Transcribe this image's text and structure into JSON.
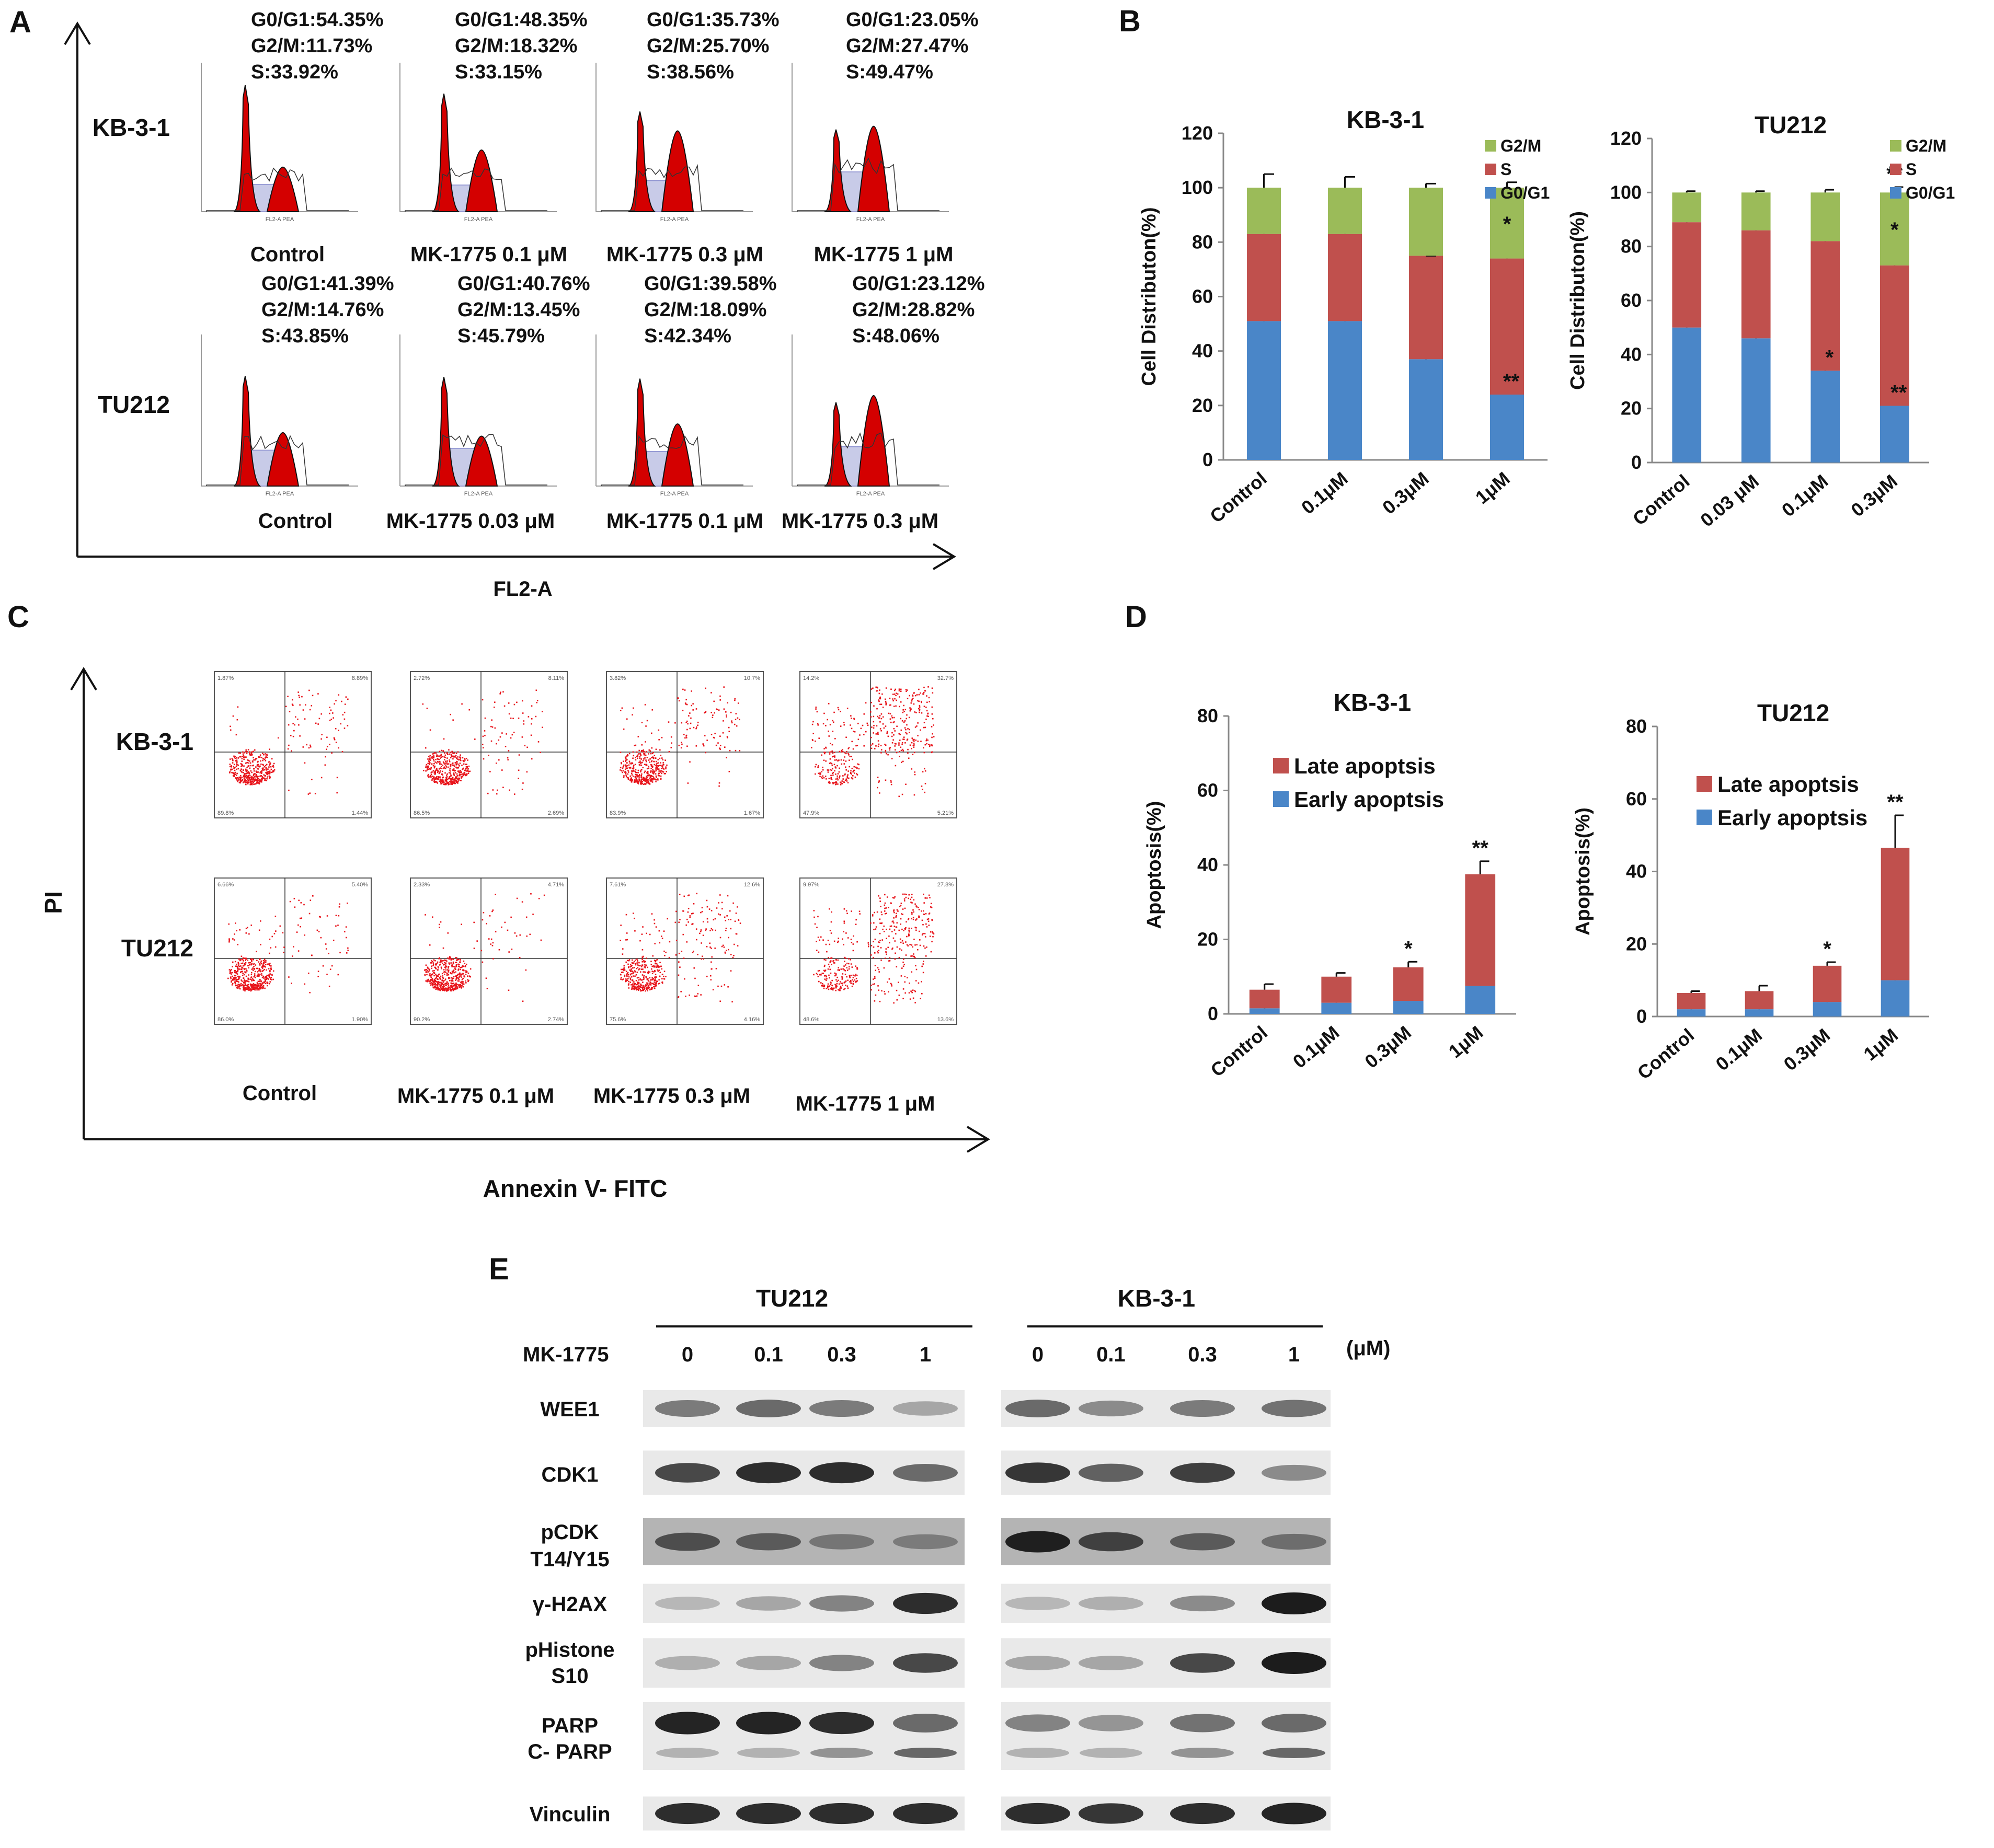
{
  "panels": {
    "A": "A",
    "B": "B",
    "C": "C",
    "D": "D",
    "E": "E"
  },
  "panel_a": {
    "x_axis_label": "FL2-A",
    "rows": [
      {
        "cell_line": "KB-3-1",
        "histograms": [
          {
            "g0g1": "G0/G1:54.35%",
            "g2m": "G2/M:11.73%",
            "s": "S:33.92%",
            "label": "Control"
          },
          {
            "g0g1": "G0/G1:48.35%",
            "g2m": "G2/M:18.32%",
            "s": "S:33.15%",
            "label": "MK-1775  0.1 μM"
          },
          {
            "g0g1": "G0/G1:35.73%",
            "g2m": "G2/M:25.70%",
            "s": "S:38.56%",
            "label": "MK-1775  0.3 μM"
          },
          {
            "g0g1": "G0/G1:23.05%",
            "g2m": "G2/M:27.47%",
            "s": "S:49.47%",
            "label": "MK-1775  1 μM"
          }
        ]
      },
      {
        "cell_line": "TU212",
        "histograms": [
          {
            "g0g1": "G0/G1:41.39%",
            "g2m": "G2/M:14.76%",
            "s": "S:43.85%",
            "label": "Control"
          },
          {
            "g0g1": "G0/G1:40.76%",
            "g2m": "G2/M:13.45%",
            "s": "S:45.79%",
            "label": "MK-1775  0.03 μM"
          },
          {
            "g0g1": "G0/G1:39.58%",
            "g2m": "G2/M:18.09%",
            "s": "S:42.34%",
            "label": "MK-1775  0.1 μM"
          },
          {
            "g0g1": "G0/G1:23.12%",
            "g2m": "G2/M:28.82%",
            "s": "S:48.06%",
            "label": "MK-1775  0.3 μM"
          }
        ]
      }
    ],
    "hist_axis_text": "FL2-A PEA"
  },
  "panel_c": {
    "x_axis_label": "Annexin V- FITC",
    "y_axis_label": "PI",
    "rows": [
      {
        "cell_line": "KB-3-1",
        "plots": [
          {
            "ul": "1.87%",
            "ur": "8.89%",
            "ll": "89.8%",
            "lr": "1.44%"
          },
          {
            "ul": "2.72%",
            "ur": "8.11%",
            "ll": "86.5%",
            "lr": "2.69%"
          },
          {
            "ul": "3.82%",
            "ur": "10.7%",
            "ll": "83.9%",
            "lr": "1.67%"
          },
          {
            "ul": "14.2%",
            "ur": "32.7%",
            "ll": "47.9%",
            "lr": "5.21%"
          }
        ]
      },
      {
        "cell_line": "TU212",
        "plots": [
          {
            "ul": "6.66%",
            "ur": "5.40%",
            "ll": "86.0%",
            "lr": "1.90%"
          },
          {
            "ul": "2.33%",
            "ur": "4.71%",
            "ll": "90.2%",
            "lr": "2.74%"
          },
          {
            "ul": "7.61%",
            "ur": "12.6%",
            "ll": "75.6%",
            "lr": "4.16%"
          },
          {
            "ul": "9.97%",
            "ur": "27.8%",
            "ll": "48.6%",
            "lr": "13.6%"
          }
        ]
      }
    ],
    "conditions": [
      "Control",
      "MK-1775  0.1 μM",
      "MK-1775  0.3 μM",
      "MK-1775  1 μM"
    ]
  },
  "panel_e": {
    "groups": [
      "TU212",
      "KB-3-1"
    ],
    "treatment_label": "MK-1775",
    "unit": "(μM)",
    "doses": [
      "0",
      "0.1",
      "0.3",
      "1"
    ],
    "blots": [
      "WEE1",
      "CDK1",
      "pCDK\nT14/Y15",
      "γ-H2AX",
      "pHistone\nS10",
      "PARP\nC- PARP",
      "Vinculin"
    ],
    "intensities": {
      "TU212": [
        [
          0.45,
          0.55,
          0.45,
          0.2
        ],
        [
          0.75,
          0.9,
          0.9,
          0.55
        ],
        [
          0.6,
          0.5,
          0.3,
          0.25
        ],
        [
          0.1,
          0.2,
          0.4,
          0.9
        ],
        [
          0.15,
          0.2,
          0.4,
          0.75
        ],
        [
          0.95,
          0.95,
          0.9,
          0.55
        ],
        [
          0.9,
          0.9,
          0.9,
          0.9
        ]
      ],
      "KB-3-1": [
        [
          0.55,
          0.35,
          0.45,
          0.5
        ],
        [
          0.85,
          0.6,
          0.8,
          0.35
        ],
        [
          0.95,
          0.7,
          0.5,
          0.35
        ],
        [
          0.1,
          0.15,
          0.35,
          1.0
        ],
        [
          0.2,
          0.2,
          0.75,
          1.0
        ],
        [
          0.4,
          0.3,
          0.5,
          0.55
        ],
        [
          0.9,
          0.85,
          0.9,
          0.95
        ]
      ]
    }
  },
  "colors": {
    "g0g1": "#4a86c8",
    "s": "#c0504d",
    "g2m": "#9bbb59",
    "hist_fill": "#d40000",
    "dot": "#e8141b"
  },
  "chart_data": [
    {
      "id": "B-KB-3-1",
      "type": "bar",
      "stacked": true,
      "title": "KB-3-1",
      "ylabel": "Cell Distributon(%)",
      "ylim": [
        0,
        120
      ],
      "yticks": [
        0,
        20,
        40,
        60,
        80,
        100,
        120
      ],
      "categories": [
        "Control",
        "0.1μM",
        "0.3μM",
        "1μM"
      ],
      "series": [
        {
          "name": "G0/G1",
          "values": [
            51,
            51,
            37,
            24
          ],
          "err": [
            3,
            3,
            0.5,
            2
          ]
        },
        {
          "name": "S",
          "values": [
            32,
            32,
            38,
            50
          ],
          "err": [
            1,
            1,
            0,
            0.5
          ]
        },
        {
          "name": "G2/M",
          "values": [
            17,
            17,
            25,
            26
          ],
          "err": [
            5,
            4,
            1.5,
            2
          ]
        }
      ],
      "annotations": [
        {
          "category": "1μM",
          "series": "S",
          "text": "**"
        },
        {
          "category": "1μM",
          "series": "G2/M",
          "text": "*"
        }
      ],
      "legend": "top-right"
    },
    {
      "id": "B-TU212",
      "type": "bar",
      "stacked": true,
      "title": "TU212",
      "ylabel": "Cell Distributon(%)",
      "ylim": [
        0,
        120
      ],
      "yticks": [
        0,
        20,
        40,
        60,
        80,
        100,
        120
      ],
      "categories": [
        "Control",
        "0.03 μM",
        "0.1μM",
        "0.3μM"
      ],
      "series": [
        {
          "name": "G0/G1",
          "values": [
            50,
            46,
            34,
            21
          ],
          "err": [
            0.5,
            4,
            6,
            5
          ]
        },
        {
          "name": "S",
          "values": [
            39,
            40,
            48,
            52
          ],
          "err": [
            0.5,
            5,
            6,
            6
          ]
        },
        {
          "name": "G2/M",
          "values": [
            11,
            14,
            18,
            27
          ],
          "err": [
            0.5,
            0.5,
            1,
            2
          ]
        }
      ],
      "annotations": [
        {
          "category": "0.1μM",
          "series": "S",
          "text": "*"
        },
        {
          "category": "0.3μM",
          "series": "S",
          "text": "**"
        },
        {
          "category": "0.3μM",
          "series": "G2/M",
          "text": "*"
        },
        {
          "category": "0.3μM",
          "series": "top",
          "text": "**"
        }
      ],
      "legend": "top-right"
    },
    {
      "id": "D-KB-3-1",
      "type": "bar",
      "stacked": true,
      "title": "KB-3-1",
      "ylabel": "Apoptosis(%)",
      "ylim": [
        0,
        80
      ],
      "yticks": [
        0,
        20,
        40,
        60,
        80
      ],
      "categories": [
        "Control",
        "0.1μM",
        "0.3μM",
        "1μM"
      ],
      "series": [
        {
          "name": "Early apoptsis",
          "values": [
            1.5,
            3,
            3.5,
            7.5
          ],
          "err": [
            0.5,
            0.5,
            1.5,
            5
          ]
        },
        {
          "name": "Late apoptsis",
          "values": [
            5,
            7,
            9,
            30
          ],
          "err": [
            1.5,
            1,
            1.5,
            3.5
          ]
        }
      ],
      "annotations": [
        {
          "category": "0.3μM",
          "text": "*"
        },
        {
          "category": "1μM",
          "text": "**"
        }
      ],
      "legend": "top-left"
    },
    {
      "id": "D-TU212",
      "type": "bar",
      "stacked": true,
      "title": "TU212",
      "ylabel": "Apoptosis(%)",
      "ylim": [
        0,
        80
      ],
      "yticks": [
        0,
        20,
        40,
        60,
        80
      ],
      "categories": [
        "Control",
        "0.1μM",
        "0.3μM",
        "1μM"
      ],
      "series": [
        {
          "name": "Early apoptsis",
          "values": [
            2,
            2,
            4,
            10
          ],
          "err": [
            0.5,
            1,
            0.5,
            4
          ]
        },
        {
          "name": "Late apoptsis",
          "values": [
            4.5,
            5,
            10,
            36.5
          ],
          "err": [
            0.5,
            1.5,
            1,
            9
          ]
        }
      ],
      "annotations": [
        {
          "category": "0.3μM",
          "text": "*"
        },
        {
          "category": "1μM",
          "text": "**"
        }
      ],
      "legend": "top-left"
    }
  ]
}
